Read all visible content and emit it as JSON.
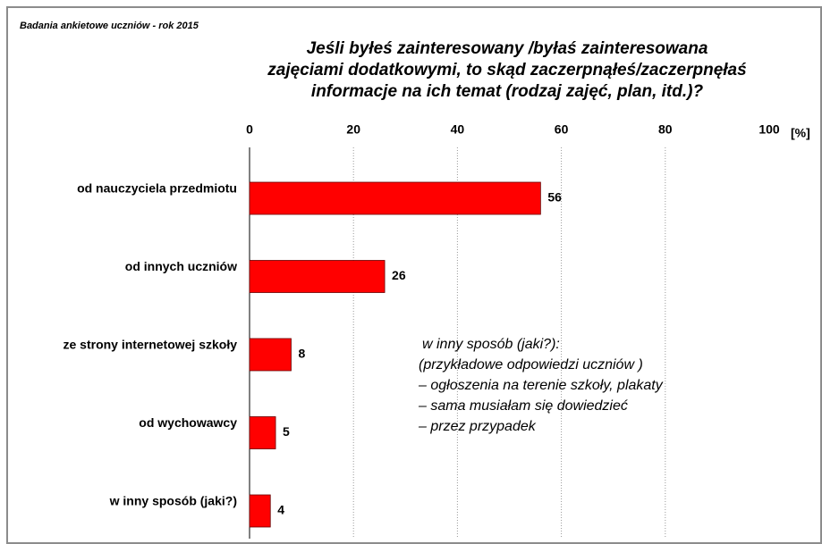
{
  "chart_data": {
    "type": "bar",
    "orientation": "horizontal",
    "supertitle": "Badania ankietowe uczniów  - rok 2015",
    "title": [
      "Jeśli byłeś zainteresowany /byłaś zainteresowana",
      "zajęciami dodatkowymi, to skąd zaczerpnąłeś/zaczerpnęłaś",
      "informacje na ich temat (rodzaj zajęć, plan, itd.)?"
    ],
    "xlabel": "[%]",
    "categories": [
      "od nauczyciela przedmiotu",
      "od innych uczniów",
      "ze strony internetowej szkoły",
      "od wychowawcy",
      "w inny sposób (jaki?)"
    ],
    "values": [
      56,
      26,
      8,
      5,
      4
    ],
    "color": "#ff0000",
    "xlim": [
      0,
      100
    ],
    "xticks": [
      0,
      20,
      40,
      60,
      80,
      100
    ],
    "grid": true,
    "annotation": [
      "w inny sposób (jaki?):",
      "(przykładowe odpowiedzi uczniów )",
      "– ogłoszenia na terenie szkoły, plakaty",
      "– sama musiałam się dowiedzieć",
      "– przez przypadek"
    ]
  }
}
